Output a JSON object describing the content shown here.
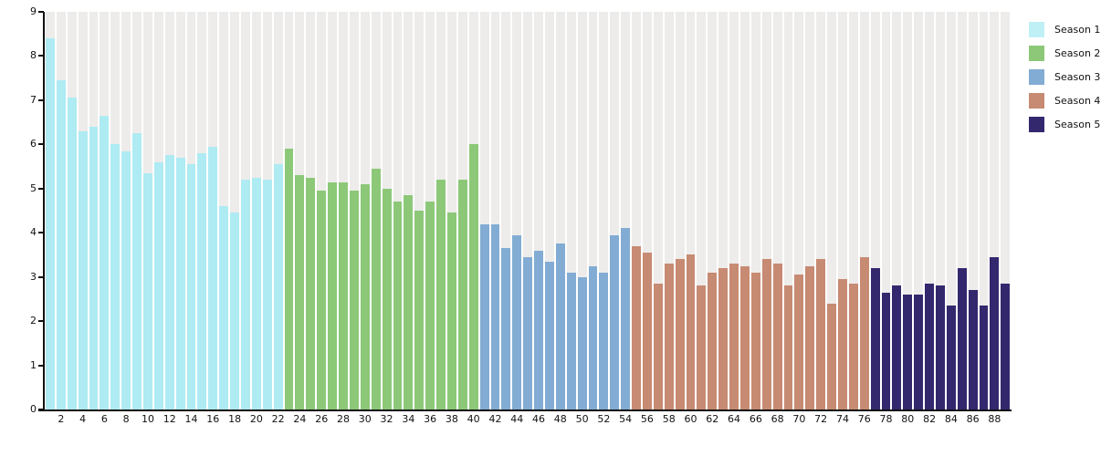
{
  "chart_data": {
    "type": "bar",
    "title": "",
    "xlabel": "",
    "ylabel": "",
    "ylim": [
      0,
      9
    ],
    "yticks": [
      0,
      1,
      2,
      3,
      4,
      5,
      6,
      7,
      8,
      9
    ],
    "x_tick_interval": 2,
    "x_tick_labels": [
      "2",
      "4",
      "6",
      "8",
      "10",
      "12",
      "14",
      "16",
      "18",
      "20",
      "22",
      "24",
      "26",
      "28",
      "30",
      "32",
      "34",
      "36",
      "38",
      "40",
      "42",
      "44",
      "46",
      "48",
      "50",
      "52",
      "54",
      "56",
      "58",
      "60",
      "62",
      "64",
      "66",
      "68",
      "70",
      "72",
      "74",
      "76",
      "78",
      "80",
      "82",
      "84",
      "86",
      "88"
    ],
    "grid": "off",
    "background_track_color": "#edecea",
    "axis_color": "#111111",
    "legend_position": "outside-top-right",
    "series": [
      {
        "name": "Season 1",
        "color": "#aeebf3",
        "values": [
          8.4,
          7.45,
          7.05,
          6.3,
          6.4,
          6.65,
          6.0,
          5.85,
          6.25,
          5.35,
          5.6,
          5.75,
          5.7,
          5.55,
          5.8,
          5.95,
          4.6,
          4.45,
          5.2,
          5.25,
          5.2,
          5.55
        ]
      },
      {
        "name": "Season 2",
        "color": "#8cc878",
        "values": [
          5.9,
          5.3,
          5.25,
          4.95,
          5.15,
          5.15,
          4.95,
          5.1,
          5.45,
          5.0,
          4.7,
          4.85,
          4.5,
          4.7,
          5.2,
          4.45,
          5.2,
          6.0
        ]
      },
      {
        "name": "Season 3",
        "color": "#82acd4",
        "values": [
          4.2,
          4.2,
          3.65,
          3.95,
          3.45,
          3.6,
          3.35,
          3.75,
          3.1,
          3.0,
          3.25,
          3.1,
          3.95,
          4.1
        ]
      },
      {
        "name": "Season 4",
        "color": "#c78a72",
        "values": [
          3.7,
          3.55,
          2.85,
          3.3,
          3.4,
          3.5,
          2.8,
          3.1,
          3.2,
          3.3,
          3.25,
          3.1,
          3.4,
          3.3,
          2.8,
          3.05,
          3.25,
          3.4,
          2.4,
          2.95,
          2.85,
          3.45
        ]
      },
      {
        "name": "Season 5",
        "color": "#33286e",
        "values": [
          3.2,
          2.65,
          2.8,
          2.6,
          2.6,
          2.85,
          2.8,
          2.35,
          3.2,
          2.7,
          2.35,
          3.45,
          2.85
        ]
      }
    ]
  },
  "legend": {
    "items": [
      {
        "label": "Season 1",
        "color": "#bff0f6"
      },
      {
        "label": "Season 2",
        "color": "#8cc878"
      },
      {
        "label": "Season 3",
        "color": "#82acd4"
      },
      {
        "label": "Season 4",
        "color": "#c78a72"
      },
      {
        "label": "Season 5",
        "color": "#33286e"
      }
    ]
  }
}
